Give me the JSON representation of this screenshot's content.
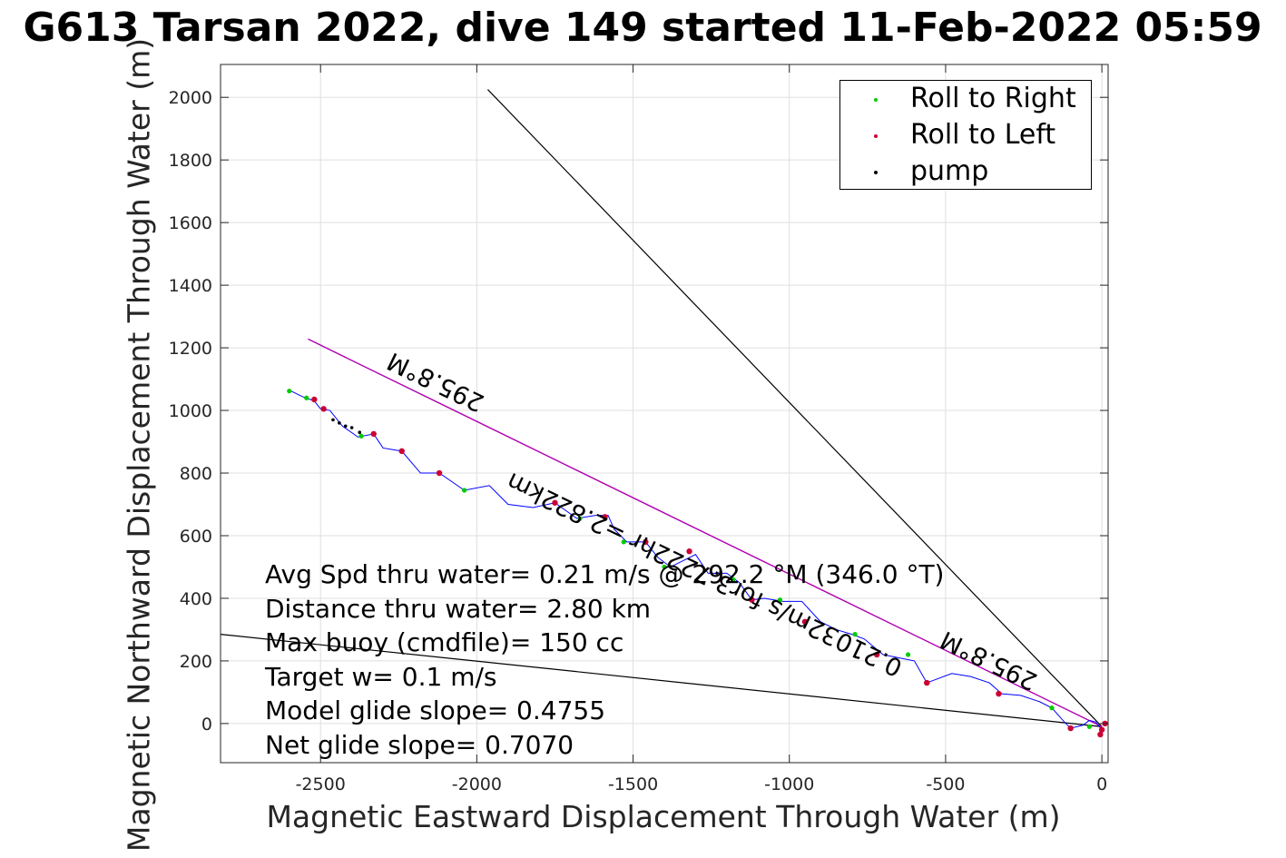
{
  "chart_data": {
    "type": "scatter",
    "title": "G613 Tarsan 2022, dive 149 started 11-Feb-2022 05:59",
    "xlabel": "Magnetic Eastward Displacement Through Water (m)",
    "ylabel": "Magnetic Northward Displacement Through Water (m)",
    "xlim": [
      -2820,
      20
    ],
    "ylim": [
      -125,
      2105
    ],
    "xticks": [
      -2500,
      -2000,
      -1500,
      -1000,
      -500,
      0
    ],
    "yticks": [
      0,
      200,
      400,
      600,
      800,
      1000,
      1200,
      1400,
      1600,
      1800,
      2000
    ],
    "grid": true,
    "legend_position": "top-right",
    "legend": [
      {
        "label": "Roll to Right",
        "color": "#00cc00"
      },
      {
        "label": "Roll to Left",
        "color": "#cc0033"
      },
      {
        "label": "pump",
        "color": "#000000"
      }
    ],
    "colors": {
      "track": "#0000ff",
      "heading_line": "#b000b0",
      "reference_lines": "#000000",
      "roll_right": "#00cc00",
      "roll_left": "#cc0033",
      "pump": "#000000"
    },
    "track": [
      [
        0,
        -20
      ],
      [
        -20,
        5
      ],
      [
        -40,
        10
      ],
      [
        -60,
        -5
      ],
      [
        -100,
        -15
      ],
      [
        -120,
        5
      ],
      [
        -160,
        50
      ],
      [
        -200,
        70
      ],
      [
        -260,
        90
      ],
      [
        -320,
        95
      ],
      [
        -360,
        130
      ],
      [
        -420,
        150
      ],
      [
        -480,
        160
      ],
      [
        -560,
        130
      ],
      [
        -600,
        200
      ],
      [
        -650,
        210
      ],
      [
        -700,
        220
      ],
      [
        -760,
        270
      ],
      [
        -800,
        285
      ],
      [
        -850,
        300
      ],
      [
        -900,
        325
      ],
      [
        -960,
        390
      ],
      [
        -1020,
        390
      ],
      [
        -1080,
        400
      ],
      [
        -1120,
        395
      ],
      [
        -1160,
        450
      ],
      [
        -1200,
        480
      ],
      [
        -1260,
        480
      ],
      [
        -1300,
        540
      ],
      [
        -1340,
        520
      ],
      [
        -1380,
        500
      ],
      [
        -1420,
        530
      ],
      [
        -1460,
        580
      ],
      [
        -1520,
        580
      ],
      [
        -1560,
        620
      ],
      [
        -1580,
        665
      ],
      [
        -1620,
        665
      ],
      [
        -1680,
        655
      ],
      [
        -1750,
        705
      ],
      [
        -1820,
        690
      ],
      [
        -1900,
        700
      ],
      [
        -1960,
        760
      ],
      [
        -2040,
        745
      ],
      [
        -2120,
        800
      ],
      [
        -2180,
        800
      ],
      [
        -2240,
        870
      ],
      [
        -2300,
        880
      ],
      [
        -2330,
        925
      ],
      [
        -2380,
        915
      ],
      [
        -2430,
        950
      ],
      [
        -2470,
        1000
      ],
      [
        -2500,
        1005
      ],
      [
        -2520,
        1030
      ],
      [
        -2560,
        1045
      ],
      [
        -2600,
        1065
      ]
    ],
    "roll_right": [
      [
        -2600,
        1062
      ],
      [
        -2545,
        1040
      ],
      [
        -2370,
        918
      ],
      [
        -2040,
        745
      ],
      [
        -1670,
        655
      ],
      [
        -1530,
        580
      ],
      [
        -1400,
        500
      ],
      [
        -1180,
        460
      ],
      [
        -1030,
        395
      ],
      [
        -790,
        285
      ],
      [
        -620,
        220
      ],
      [
        -160,
        50
      ],
      [
        -40,
        -10
      ]
    ],
    "roll_left": [
      [
        -2520,
        1035
      ],
      [
        -2490,
        1005
      ],
      [
        -2330,
        925
      ],
      [
        -2240,
        870
      ],
      [
        -2120,
        800
      ],
      [
        -1750,
        705
      ],
      [
        -1590,
        660
      ],
      [
        -1460,
        580
      ],
      [
        -1320,
        550
      ],
      [
        -1120,
        395
      ],
      [
        -950,
        325
      ],
      [
        -720,
        220
      ],
      [
        -560,
        130
      ],
      [
        -330,
        95
      ],
      [
        -100,
        -15
      ],
      [
        0,
        -20
      ],
      [
        -5,
        -35
      ],
      [
        10,
        0
      ]
    ],
    "pump": [
      [
        -2460,
        970
      ],
      [
        -2440,
        960
      ],
      [
        -2420,
        950
      ],
      [
        -2400,
        945
      ],
      [
        -2375,
        930
      ]
    ],
    "reference_lines": [
      {
        "from": [
          -1965,
          2025
        ],
        "to": [
          0,
          -10
        ]
      },
      {
        "from": [
          -2820,
          285
        ],
        "to": [
          0,
          -10
        ]
      }
    ],
    "heading_line": {
      "from": [
        -2540,
        1228
      ],
      "to": [
        0,
        -10
      ]
    },
    "annotations": [
      {
        "text": "295.8°M",
        "at": [
          -2130,
          1095
        ],
        "rotate": 205.8
      },
      {
        "text": "0.21032m/s for3.7222hr =2.822km",
        "at": [
          -1270,
          480
        ],
        "rotate": 205.8
      },
      {
        "text": "295.8°M",
        "at": [
          -360,
          205
        ],
        "rotate": 205.8
      }
    ],
    "stats_text": [
      "Avg Spd thru water=  0.21 m/s @ 292.2 °M (346.0 °T)",
      "Distance thru water=  2.80 km",
      "Max buoy (cmdfile)= 150 cc",
      "Target w= 0.1 m/s",
      "Model glide slope= 0.4755",
      "Net glide slope= 0.7070"
    ]
  }
}
